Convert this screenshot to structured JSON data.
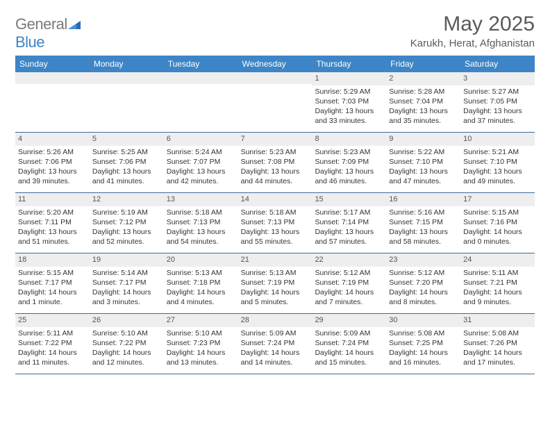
{
  "brand": {
    "general": "General",
    "blue": "Blue"
  },
  "title": "May 2025",
  "location": "Karukh, Herat, Afghanistan",
  "colors": {
    "header_bg": "#3d85c6",
    "header_text": "#ffffff",
    "daynum_bg": "#eeeeee",
    "body_text": "#333333",
    "title_text": "#5a5a5a",
    "rule": "#3d6a9a"
  },
  "dow": [
    "Sunday",
    "Monday",
    "Tuesday",
    "Wednesday",
    "Thursday",
    "Friday",
    "Saturday"
  ],
  "weeks": [
    [
      {
        "n": "",
        "lines": []
      },
      {
        "n": "",
        "lines": []
      },
      {
        "n": "",
        "lines": []
      },
      {
        "n": "",
        "lines": []
      },
      {
        "n": "1",
        "lines": [
          "Sunrise: 5:29 AM",
          "Sunset: 7:03 PM",
          "Daylight: 13 hours and 33 minutes."
        ]
      },
      {
        "n": "2",
        "lines": [
          "Sunrise: 5:28 AM",
          "Sunset: 7:04 PM",
          "Daylight: 13 hours and 35 minutes."
        ]
      },
      {
        "n": "3",
        "lines": [
          "Sunrise: 5:27 AM",
          "Sunset: 7:05 PM",
          "Daylight: 13 hours and 37 minutes."
        ]
      }
    ],
    [
      {
        "n": "4",
        "lines": [
          "Sunrise: 5:26 AM",
          "Sunset: 7:06 PM",
          "Daylight: 13 hours and 39 minutes."
        ]
      },
      {
        "n": "5",
        "lines": [
          "Sunrise: 5:25 AM",
          "Sunset: 7:06 PM",
          "Daylight: 13 hours and 41 minutes."
        ]
      },
      {
        "n": "6",
        "lines": [
          "Sunrise: 5:24 AM",
          "Sunset: 7:07 PM",
          "Daylight: 13 hours and 42 minutes."
        ]
      },
      {
        "n": "7",
        "lines": [
          "Sunrise: 5:23 AM",
          "Sunset: 7:08 PM",
          "Daylight: 13 hours and 44 minutes."
        ]
      },
      {
        "n": "8",
        "lines": [
          "Sunrise: 5:23 AM",
          "Sunset: 7:09 PM",
          "Daylight: 13 hours and 46 minutes."
        ]
      },
      {
        "n": "9",
        "lines": [
          "Sunrise: 5:22 AM",
          "Sunset: 7:10 PM",
          "Daylight: 13 hours and 47 minutes."
        ]
      },
      {
        "n": "10",
        "lines": [
          "Sunrise: 5:21 AM",
          "Sunset: 7:10 PM",
          "Daylight: 13 hours and 49 minutes."
        ]
      }
    ],
    [
      {
        "n": "11",
        "lines": [
          "Sunrise: 5:20 AM",
          "Sunset: 7:11 PM",
          "Daylight: 13 hours and 51 minutes."
        ]
      },
      {
        "n": "12",
        "lines": [
          "Sunrise: 5:19 AM",
          "Sunset: 7:12 PM",
          "Daylight: 13 hours and 52 minutes."
        ]
      },
      {
        "n": "13",
        "lines": [
          "Sunrise: 5:18 AM",
          "Sunset: 7:13 PM",
          "Daylight: 13 hours and 54 minutes."
        ]
      },
      {
        "n": "14",
        "lines": [
          "Sunrise: 5:18 AM",
          "Sunset: 7:13 PM",
          "Daylight: 13 hours and 55 minutes."
        ]
      },
      {
        "n": "15",
        "lines": [
          "Sunrise: 5:17 AM",
          "Sunset: 7:14 PM",
          "Daylight: 13 hours and 57 minutes."
        ]
      },
      {
        "n": "16",
        "lines": [
          "Sunrise: 5:16 AM",
          "Sunset: 7:15 PM",
          "Daylight: 13 hours and 58 minutes."
        ]
      },
      {
        "n": "17",
        "lines": [
          "Sunrise: 5:15 AM",
          "Sunset: 7:16 PM",
          "Daylight: 14 hours and 0 minutes."
        ]
      }
    ],
    [
      {
        "n": "18",
        "lines": [
          "Sunrise: 5:15 AM",
          "Sunset: 7:17 PM",
          "Daylight: 14 hours and 1 minute."
        ]
      },
      {
        "n": "19",
        "lines": [
          "Sunrise: 5:14 AM",
          "Sunset: 7:17 PM",
          "Daylight: 14 hours and 3 minutes."
        ]
      },
      {
        "n": "20",
        "lines": [
          "Sunrise: 5:13 AM",
          "Sunset: 7:18 PM",
          "Daylight: 14 hours and 4 minutes."
        ]
      },
      {
        "n": "21",
        "lines": [
          "Sunrise: 5:13 AM",
          "Sunset: 7:19 PM",
          "Daylight: 14 hours and 5 minutes."
        ]
      },
      {
        "n": "22",
        "lines": [
          "Sunrise: 5:12 AM",
          "Sunset: 7:19 PM",
          "Daylight: 14 hours and 7 minutes."
        ]
      },
      {
        "n": "23",
        "lines": [
          "Sunrise: 5:12 AM",
          "Sunset: 7:20 PM",
          "Daylight: 14 hours and 8 minutes."
        ]
      },
      {
        "n": "24",
        "lines": [
          "Sunrise: 5:11 AM",
          "Sunset: 7:21 PM",
          "Daylight: 14 hours and 9 minutes."
        ]
      }
    ],
    [
      {
        "n": "25",
        "lines": [
          "Sunrise: 5:11 AM",
          "Sunset: 7:22 PM",
          "Daylight: 14 hours and 11 minutes."
        ]
      },
      {
        "n": "26",
        "lines": [
          "Sunrise: 5:10 AM",
          "Sunset: 7:22 PM",
          "Daylight: 14 hours and 12 minutes."
        ]
      },
      {
        "n": "27",
        "lines": [
          "Sunrise: 5:10 AM",
          "Sunset: 7:23 PM",
          "Daylight: 14 hours and 13 minutes."
        ]
      },
      {
        "n": "28",
        "lines": [
          "Sunrise: 5:09 AM",
          "Sunset: 7:24 PM",
          "Daylight: 14 hours and 14 minutes."
        ]
      },
      {
        "n": "29",
        "lines": [
          "Sunrise: 5:09 AM",
          "Sunset: 7:24 PM",
          "Daylight: 14 hours and 15 minutes."
        ]
      },
      {
        "n": "30",
        "lines": [
          "Sunrise: 5:08 AM",
          "Sunset: 7:25 PM",
          "Daylight: 14 hours and 16 minutes."
        ]
      },
      {
        "n": "31",
        "lines": [
          "Sunrise: 5:08 AM",
          "Sunset: 7:26 PM",
          "Daylight: 14 hours and 17 minutes."
        ]
      }
    ]
  ]
}
